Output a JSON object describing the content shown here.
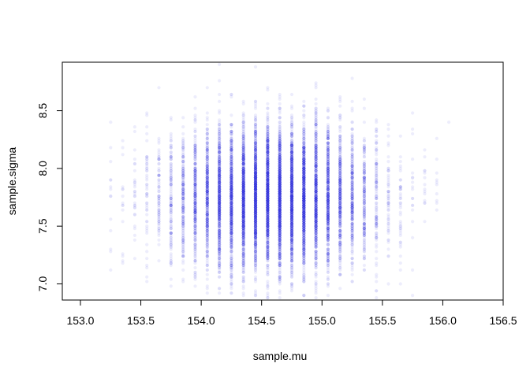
{
  "chart_data": {
    "type": "scatter",
    "title": "",
    "xlabel": "sample.mu",
    "ylabel": "sample.sigma",
    "xlim": [
      152.85,
      156.5
    ],
    "ylim": [
      6.86,
      8.92
    ],
    "xticks": [
      "153.0",
      "153.5",
      "154.0",
      "154.5",
      "155.0",
      "155.5",
      "156.0",
      "156.5"
    ],
    "yticks": [
      "7.0",
      "7.5",
      "8.0",
      "8.5"
    ],
    "grid": false,
    "point_color": "#3333dd",
    "point_opacity": 0.09,
    "grid_x_columns": [
      153.25,
      153.35,
      153.45,
      153.55,
      153.65,
      153.75,
      153.85,
      153.95,
      154.05,
      154.15,
      154.25,
      154.35,
      154.45,
      154.55,
      154.65,
      154.75,
      154.85,
      154.95,
      155.05,
      155.15,
      155.25,
      155.35,
      155.45,
      155.55,
      155.65,
      155.75,
      155.85,
      155.95,
      156.05
    ],
    "posterior_center": [
      154.6,
      7.75
    ],
    "posterior_sd": [
      0.42,
      0.3
    ],
    "sample_count": 10000
  }
}
